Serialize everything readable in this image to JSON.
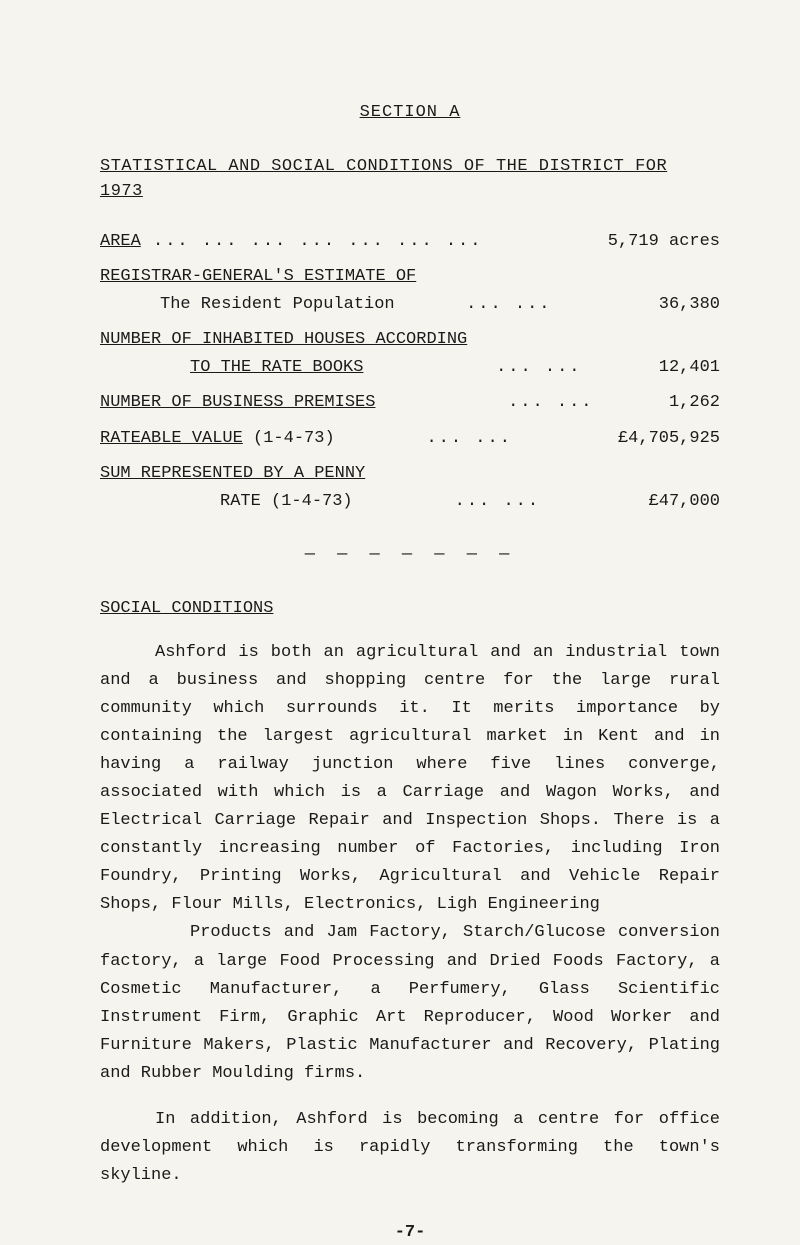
{
  "section_heading": "SECTION  A",
  "main_title": "STATISTICAL AND SOCIAL CONDITIONS OF THE DISTRICT FOR 1973",
  "area": {
    "label": "AREA",
    "dots": "  ...    ...    ...    ...    ...    ...   ...",
    "value": "5,719 acres"
  },
  "registrar_label": "REGISTRAR-GENERAL'S ESTIMATE OF",
  "resident_pop": {
    "label": "The Resident Population",
    "dots": "...   ...",
    "value": "36,380"
  },
  "inhabited_houses": {
    "label1": "NUMBER OF INHABITED HOUSES ACCORDING",
    "label2": "TO THE RATE BOOKS",
    "dots": "...   ...",
    "value": "12,401"
  },
  "business_premises": {
    "label": "NUMBER OF BUSINESS PREMISES",
    "dots": "...   ...",
    "value": " 1,262"
  },
  "rateable_value": {
    "label": "RATEABLE VALUE",
    "paren": " (1-4-73)",
    "dots": "...   ...",
    "value": "£4,705,925"
  },
  "sum_penny": {
    "label1": "SUM REPRESENTED BY A PENNY",
    "label2": "RATE (1-4-73)",
    "dots": "...   ...",
    "value": "£47,000"
  },
  "divider": "— — — — — — —",
  "social_heading": "SOCIAL CONDITIONS",
  "para1": "Ashford is both an agricultural and an industrial town and a business and shopping centre for the large rural community which surrounds it.  It merits importance by containing the largest agricultural market in Kent and in having a railway junction where five lines converge, associated with which is a Carriage and Wagon Works, and Electrical Carriage Repair and Inspection Shops.  There is a constantly increasing number of Factories, including Iron Foundry, Printing Works, Agricultural and Vehicle Repair Shops, Flour Mills, Electronics, Ligh Engineering",
  "para1b": "Products and Jam Factory, Starch/Glucose conversion factory, a large Food Processing and Dried Foods Factory, a Cosmetic Manufacturer, a Perfumery, Glass Scientific Instrument Firm, Graphic Art Reproducer, Wood Worker and Furniture Makers, Plastic Manufacturer and Recovery, Plating and Rubber Moulding firms.",
  "para2": "In addition, Ashford is becoming a centre for office development which is rapidly transforming the town's skyline.",
  "page_num": "-7-"
}
